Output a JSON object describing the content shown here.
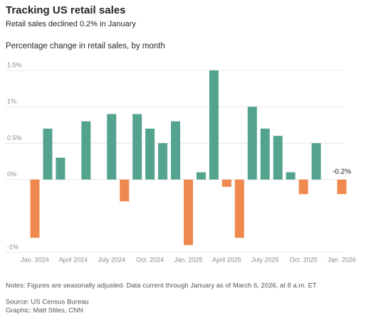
{
  "chart_data": {
    "type": "bar",
    "title": "Tracking US retail sales",
    "subtitle": "Retail sales declined 0.2% in January",
    "chart_title": "Percentage change in retail sales, by month",
    "categories": [
      "Jan. 2024",
      null,
      null,
      "April 2024",
      null,
      null,
      "July 2024",
      null,
      null,
      "Oct. 2024",
      null,
      null,
      "Jan. 2025",
      null,
      null,
      "April 2025",
      null,
      null,
      "July 2025",
      null,
      null,
      "Oct. 2025",
      null,
      null,
      "Jan. 2026"
    ],
    "values": [
      -0.8,
      0.7,
      0.3,
      0,
      0.8,
      0,
      0.9,
      -0.3,
      0.9,
      0.7,
      0.5,
      0.8,
      -0.9,
      0.1,
      1.5,
      -0.1,
      -0.8,
      1.0,
      0.7,
      0.6,
      0.1,
      -0.2,
      0.5,
      0,
      -0.2
    ],
    "value_labels": [
      null,
      null,
      null,
      null,
      null,
      null,
      null,
      null,
      null,
      null,
      null,
      null,
      null,
      null,
      null,
      null,
      null,
      null,
      null,
      null,
      null,
      null,
      null,
      null,
      "-0.2%"
    ],
    "positive_color": "#54a38f",
    "negative_color": "#f0894f",
    "ylim": [
      -1,
      1.5
    ],
    "yticks": [
      {
        "value": -1,
        "label": "-1%"
      },
      {
        "value": 0,
        "label": "0%"
      },
      {
        "value": 0.5,
        "label": "0.5%"
      },
      {
        "value": 1,
        "label": "1%"
      },
      {
        "value": 1.5,
        "label": "1.5%"
      }
    ],
    "grid": true,
    "notes": [
      "Notes: Figures are seasonally adjusted. Data current through January as of March 6, 2026, at 8 a.m. ET.",
      "Source: US Census Bureau",
      "Graphic: Matt Stiles, CNN"
    ]
  }
}
